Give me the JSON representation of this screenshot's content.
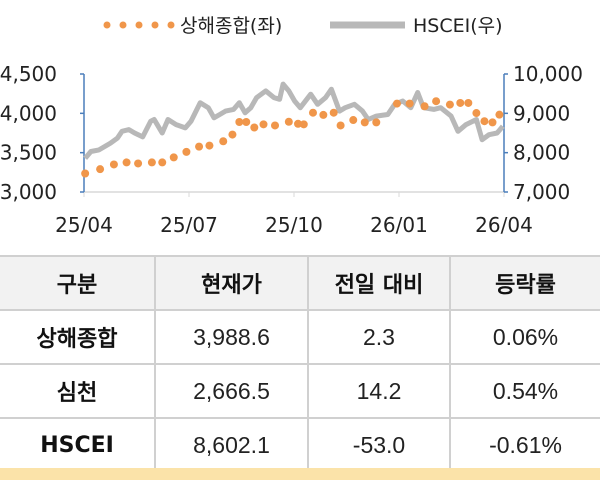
{
  "chart_data": {
    "type": "line",
    "legend_placement": "top",
    "colors": {
      "shanghai": "#f0964a",
      "hscei": "#b8b8b8",
      "axis": "#4a7ebb"
    },
    "x_ticks": [
      "25/04",
      "25/07",
      "25/10",
      "26/01",
      "26/04"
    ],
    "x_range": [
      "2025-04-01",
      "2026-04-01"
    ],
    "y_left": {
      "range": [
        3000,
        4500
      ],
      "ticks": [
        "3,000",
        "3,500",
        "4,000",
        "4,500"
      ]
    },
    "y_right": {
      "range": [
        7000,
        10000
      ],
      "ticks": [
        "7,000",
        "8,000",
        "9,000",
        "10,000"
      ]
    },
    "series": [
      {
        "name": "상해종합(좌)",
        "axis": "left",
        "style": "dots",
        "points": [
          [
            "2025-04-02",
            3235
          ],
          [
            "2025-04-15",
            3290
          ],
          [
            "2025-04-27",
            3350
          ],
          [
            "2025-05-08",
            3376
          ],
          [
            "2025-05-18",
            3363
          ],
          [
            "2025-05-30",
            3376
          ],
          [
            "2025-06-08",
            3376
          ],
          [
            "2025-06-18",
            3440
          ],
          [
            "2025-06-29",
            3510
          ],
          [
            "2025-07-10",
            3577
          ],
          [
            "2025-07-19",
            3590
          ],
          [
            "2025-07-31",
            3645
          ],
          [
            "2025-08-08",
            3730
          ],
          [
            "2025-08-14",
            3890
          ],
          [
            "2025-08-20",
            3890
          ],
          [
            "2025-08-27",
            3820
          ],
          [
            "2025-09-04",
            3860
          ],
          [
            "2025-09-14",
            3846
          ],
          [
            "2025-09-26",
            3893
          ],
          [
            "2025-10-04",
            3867
          ],
          [
            "2025-10-09",
            3860
          ],
          [
            "2025-10-17",
            4008
          ],
          [
            "2025-10-26",
            3980
          ],
          [
            "2025-11-04",
            4008
          ],
          [
            "2025-11-10",
            3846
          ],
          [
            "2025-11-21",
            3915
          ],
          [
            "2025-12-01",
            3885
          ],
          [
            "2025-12-11",
            3885
          ],
          [
            "2025-12-29",
            4124
          ],
          [
            "2026-01-09",
            4124
          ],
          [
            "2026-01-22",
            4090
          ],
          [
            "2026-02-01",
            4154
          ],
          [
            "2026-02-13",
            4111
          ],
          [
            "2026-02-22",
            4132
          ],
          [
            "2026-03-01",
            4132
          ],
          [
            "2026-03-08",
            4004
          ],
          [
            "2026-03-15",
            3900
          ],
          [
            "2026-03-22",
            3885
          ],
          [
            "2026-03-28",
            3983
          ]
        ]
      },
      {
        "name": "HSCEI(우)",
        "axis": "right",
        "style": "line",
        "points": [
          [
            "2025-04-02",
            7857
          ],
          [
            "2025-04-07",
            8029
          ],
          [
            "2025-04-14",
            8071
          ],
          [
            "2025-04-24",
            8243
          ],
          [
            "2025-04-30",
            8371
          ],
          [
            "2025-05-04",
            8543
          ],
          [
            "2025-05-10",
            8586
          ],
          [
            "2025-05-15",
            8500
          ],
          [
            "2025-05-22",
            8400
          ],
          [
            "2025-05-29",
            8800
          ],
          [
            "2025-06-01",
            8843
          ],
          [
            "2025-06-08",
            8500
          ],
          [
            "2025-06-13",
            8843
          ],
          [
            "2025-06-20",
            8714
          ],
          [
            "2025-06-28",
            8629
          ],
          [
            "2025-07-03",
            8800
          ],
          [
            "2025-07-11",
            9271
          ],
          [
            "2025-07-18",
            9143
          ],
          [
            "2025-07-23",
            8886
          ],
          [
            "2025-07-28",
            8971
          ],
          [
            "2025-08-02",
            9057
          ],
          [
            "2025-08-09",
            9100
          ],
          [
            "2025-08-14",
            9271
          ],
          [
            "2025-08-19",
            9014
          ],
          [
            "2025-08-24",
            9143
          ],
          [
            "2025-08-29",
            9400
          ],
          [
            "2025-09-06",
            9571
          ],
          [
            "2025-09-13",
            9400
          ],
          [
            "2025-09-18",
            9357
          ],
          [
            "2025-09-21",
            9743
          ],
          [
            "2025-09-26",
            9571
          ],
          [
            "2025-10-01",
            9314
          ],
          [
            "2025-10-06",
            9143
          ],
          [
            "2025-10-15",
            9486
          ],
          [
            "2025-10-21",
            9229
          ],
          [
            "2025-10-28",
            9400
          ],
          [
            "2025-11-02",
            9614
          ],
          [
            "2025-11-09",
            9057
          ],
          [
            "2025-11-14",
            9143
          ],
          [
            "2025-11-22",
            9229
          ],
          [
            "2025-11-29",
            9057
          ],
          [
            "2025-12-04",
            8843
          ],
          [
            "2025-12-11",
            8929
          ],
          [
            "2025-12-21",
            8971
          ],
          [
            "2025-12-27",
            9229
          ],
          [
            "2026-01-03",
            9314
          ],
          [
            "2026-01-10",
            9143
          ],
          [
            "2026-01-16",
            9529
          ],
          [
            "2026-01-21",
            9143
          ],
          [
            "2026-01-30",
            9100
          ],
          [
            "2026-02-05",
            9143
          ],
          [
            "2026-02-14",
            8929
          ],
          [
            "2026-02-20",
            8543
          ],
          [
            "2026-02-27",
            8714
          ],
          [
            "2026-03-08",
            8843
          ],
          [
            "2026-03-13",
            8329
          ],
          [
            "2026-03-19",
            8457
          ],
          [
            "2026-03-26",
            8500
          ],
          [
            "2026-03-31",
            8671
          ]
        ]
      }
    ]
  },
  "table": {
    "headers": [
      "구분",
      "현재가",
      "전일 대비",
      "등락률"
    ],
    "rows": [
      [
        "상해종합",
        "3,988.6",
        "2.3",
        "0.06%"
      ],
      [
        "심천",
        "2,666.5",
        "14.2",
        "0.54%"
      ],
      [
        "HSCEI",
        "8,602.1",
        "-53.0",
        "-0.61%"
      ]
    ]
  }
}
